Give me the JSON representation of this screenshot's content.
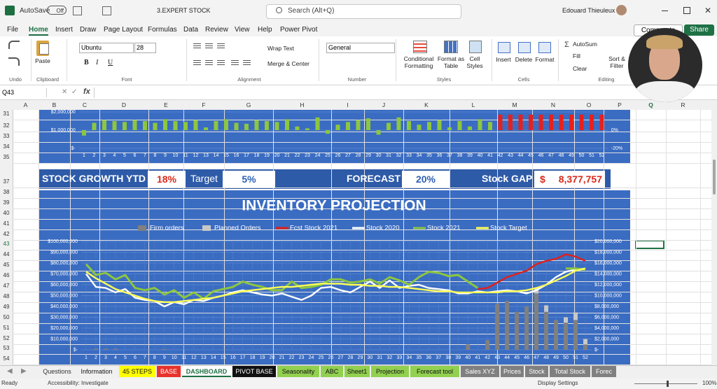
{
  "title_bar": {
    "autosave": "AutoSave",
    "toggle": "Off",
    "file_name": "3.EXPERT STOCK",
    "search": "Search (Alt+Q)",
    "user": "Edouard Thieuleux"
  },
  "menu_tabs": [
    "File",
    "Home",
    "Insert",
    "Draw",
    "Page Layout",
    "Formulas",
    "Data",
    "Review",
    "View",
    "Help",
    "Power Pivot"
  ],
  "comments": "Comments",
  "share": "Share",
  "ribbon": {
    "groups": [
      "Undo",
      "Clipboard",
      "Font",
      "Alignment",
      "Number",
      "Styles",
      "Cells",
      "Editing"
    ],
    "buttons": [
      "Paste",
      "Wrap Text",
      "Merge & Center",
      "Conditional Formatting",
      "Format as Table",
      "Cell Styles",
      "Insert",
      "Delete",
      "Format",
      "AutoSum",
      "Fill",
      "Clear",
      "Sort & Filter"
    ],
    "font_name": "Ubuntu",
    "font_size": "28",
    "number_format": "General",
    "font_styles": [
      "B",
      "I",
      "U"
    ]
  },
  "formula_bar": {
    "name_box": "Q43",
    "function": "fx"
  },
  "columns": [
    "A",
    "B",
    "C",
    "D",
    "E",
    "F",
    "G",
    "H",
    "I",
    "J",
    "K",
    "L",
    "M",
    "N",
    "O",
    "P",
    "Q",
    "R"
  ],
  "rows": [
    31,
    32,
    33,
    34,
    35,
    37,
    38,
    39,
    40,
    41,
    42,
    43,
    44,
    45,
    46,
    47,
    48,
    49,
    50,
    51,
    52,
    53,
    54
  ],
  "kpis": [
    {
      "label": "STOCK GROWTH YTD",
      "value": "18%"
    },
    {
      "label": "Target",
      "value": "5%"
    },
    {
      "label": "FORECAST",
      "value": "20%"
    },
    {
      "label": "Stock GAP",
      "currency": "$",
      "value": "8,377,757"
    }
  ],
  "sheet_tabs": [
    "Questions",
    "Information",
    "45 STEPS",
    "BASE",
    "DASHBOARD",
    "PIVOT BASE",
    "Seasonality",
    "ABC",
    "Sheet1",
    "Projection",
    "Forecast tool",
    "Sales XYZ",
    "Prices",
    "Stock",
    "Total Stock",
    "Forec"
  ],
  "status_bar": {
    "mode": "Ready",
    "accessibility": "Accessibility: Investigate",
    "display": "Display Settings",
    "zoom": "100%"
  },
  "chart_data": [
    {
      "type": "bar",
      "categories": [
        1,
        2,
        3,
        4,
        5,
        6,
        7,
        8,
        9,
        10,
        11,
        12,
        13,
        14,
        15,
        16,
        17,
        18,
        19,
        20,
        21,
        22,
        23,
        24,
        25,
        26,
        27,
        28,
        29,
        30,
        31,
        32,
        33,
        34,
        35,
        36,
        37,
        38,
        39,
        40,
        41,
        42,
        43,
        44,
        45,
        46,
        47,
        48,
        49,
        50,
        51,
        52
      ],
      "values": [
        -6,
        8,
        11,
        10,
        9,
        11,
        10,
        8,
        12,
        10,
        9,
        11,
        3,
        10,
        12,
        8,
        7,
        11,
        10,
        9,
        12,
        4,
        2,
        14,
        -4,
        6,
        9,
        11,
        13,
        -5,
        8,
        14,
        10,
        6,
        9,
        11,
        3,
        10,
        4,
        12,
        9,
        17,
        17,
        17,
        17,
        17,
        17,
        17,
        17,
        17,
        17,
        17
      ],
      "colors": [
        "#8dc63f",
        "#8dc63f",
        "#8dc63f",
        "#8dc63f",
        "#8dc63f",
        "#8dc63f",
        "#8dc63f",
        "#8dc63f",
        "#8dc63f",
        "#8dc63f",
        "#8dc63f",
        "#8dc63f",
        "#8dc63f",
        "#8dc63f",
        "#8dc63f",
        "#8dc63f",
        "#8dc63f",
        "#8dc63f",
        "#8dc63f",
        "#8dc63f",
        "#8dc63f",
        "#8dc63f",
        "#8dc63f",
        "#8dc63f",
        "#8dc63f",
        "#8dc63f",
        "#8dc63f",
        "#8dc63f",
        "#8dc63f",
        "#8dc63f",
        "#8dc63f",
        "#8dc63f",
        "#8dc63f",
        "#8dc63f",
        "#8dc63f",
        "#8dc63f",
        "#8dc63f",
        "#8dc63f",
        "#8dc63f",
        "#8dc63f",
        "#8dc63f",
        "#e8201c",
        "#e8201c",
        "#e8201c",
        "#e8201c",
        "#e8201c",
        "#e8201c",
        "#e8201c",
        "#e8201c",
        "#e8201c",
        "#e8201c",
        "#e8201c"
      ],
      "axis": "y2",
      "ylim": [
        0,
        2000000
      ],
      "yticks": [
        {
          "value": 0,
          "label": "$-"
        },
        {
          "value": 1000000,
          "label": "$1,000,000"
        },
        {
          "value": 2000000,
          "label": "$2,000,000"
        }
      ],
      "y2lim": [
        -20,
        20
      ],
      "y2ticks": [
        {
          "value": -20,
          "label": "-20%"
        },
        {
          "value": 0,
          "label": "0%"
        }
      ],
      "grid": true
    },
    {
      "type": "combo",
      "title": "INVENTORY PROJECTION",
      "categories": [
        1,
        2,
        3,
        4,
        5,
        6,
        7,
        8,
        9,
        10,
        11,
        12,
        13,
        14,
        15,
        16,
        17,
        18,
        19,
        20,
        21,
        22,
        23,
        24,
        25,
        26,
        27,
        28,
        29,
        30,
        31,
        32,
        33,
        34,
        35,
        36,
        37,
        38,
        39,
        40,
        41,
        42,
        43,
        44,
        45,
        46,
        47,
        48,
        49,
        50,
        51,
        52
      ],
      "series": [
        {
          "name": "Firm orders",
          "type": "bar",
          "axis": "y2",
          "color": "#808080",
          "values": [
            0,
            200000,
            200000,
            200000,
            0,
            0,
            0,
            0,
            150000,
            0,
            0,
            0,
            0,
            0,
            0,
            0,
            0,
            0,
            0,
            0,
            0,
            0,
            0,
            0,
            0,
            0,
            0,
            0,
            0,
            0,
            0,
            0,
            0,
            0,
            0,
            0,
            0,
            0,
            0,
            1000000,
            0,
            1800000,
            8500000,
            9000000,
            7000000,
            8000000,
            10400000,
            7000000,
            5500000,
            5000000,
            5500000,
            1000000
          ]
        },
        {
          "name": "Planned Orders",
          "type": "bar",
          "axis": "y2",
          "color": "#c8c8c8",
          "values": [
            0,
            0,
            0,
            0,
            0,
            0,
            0,
            0,
            0,
            0,
            0,
            0,
            0,
            0,
            0,
            0,
            0,
            0,
            0,
            0,
            0,
            0,
            0,
            0,
            0,
            0,
            0,
            0,
            0,
            0,
            0,
            0,
            0,
            0,
            0,
            0,
            0,
            0,
            0,
            0,
            0,
            0,
            0,
            0,
            0,
            0,
            1000000,
            1200000,
            0,
            1000000,
            1400000,
            1000000
          ]
        },
        {
          "name": "Fcst Stock 2021",
          "type": "line",
          "color": "#e0201c",
          "values": [
            null,
            null,
            null,
            null,
            null,
            null,
            null,
            null,
            null,
            null,
            null,
            null,
            null,
            null,
            null,
            null,
            null,
            null,
            null,
            null,
            null,
            null,
            null,
            null,
            null,
            null,
            null,
            null,
            null,
            null,
            null,
            null,
            null,
            null,
            null,
            null,
            null,
            null,
            null,
            null,
            56000000,
            57000000,
            62000000,
            67000000,
            70000000,
            73000000,
            79000000,
            82000000,
            84000000,
            88000000,
            86000000,
            82000000
          ]
        },
        {
          "name": "Stock 2020",
          "type": "line",
          "color": "#ffffff",
          "values": [
            70000000,
            58000000,
            57000000,
            53000000,
            56000000,
            48000000,
            46000000,
            45000000,
            40000000,
            44000000,
            42000000,
            46000000,
            45000000,
            48000000,
            50000000,
            53000000,
            55000000,
            53000000,
            51000000,
            50000000,
            52000000,
            49000000,
            46000000,
            50000000,
            57000000,
            58000000,
            55000000,
            53000000,
            58000000,
            63000000,
            57000000,
            64000000,
            57000000,
            59000000,
            60000000,
            57000000,
            56000000,
            55000000,
            52000000,
            52000000,
            54000000,
            53000000,
            54000000,
            55000000,
            54000000,
            52000000,
            55000000,
            60000000,
            67000000,
            72000000,
            74000000,
            75000000
          ]
        },
        {
          "name": "Stock 2021",
          "type": "line",
          "color": "#8dc63f",
          "values": [
            79000000,
            69000000,
            71000000,
            65000000,
            69000000,
            57000000,
            55000000,
            57000000,
            51000000,
            55000000,
            48000000,
            53000000,
            47000000,
            54000000,
            56000000,
            58000000,
            63000000,
            60000000,
            58000000,
            55000000,
            55000000,
            63000000,
            57000000,
            58000000,
            60000000,
            65000000,
            65000000,
            62000000,
            63000000,
            65000000,
            61000000,
            67000000,
            64000000,
            60000000,
            67000000,
            72000000,
            71000000,
            68000000,
            69000000,
            63000000,
            57000000,
            null,
            null,
            null,
            null,
            null,
            null,
            null,
            null,
            75000000,
            75000000,
            74000000
          ]
        },
        {
          "name": "Stock Target",
          "type": "line",
          "color": "#ffff55",
          "values": [
            72000000,
            66000000,
            61000000,
            56000000,
            53000000,
            50000000,
            47000000,
            45000000,
            44000000,
            44000000,
            45000000,
            46000000,
            47000000,
            48000000,
            50000000,
            52000000,
            54000000,
            55000000,
            56000000,
            57000000,
            58000000,
            58000000,
            59000000,
            60000000,
            61000000,
            61000000,
            61000000,
            60000000,
            60000000,
            59000000,
            59000000,
            58000000,
            58000000,
            57000000,
            56000000,
            55000000,
            54000000,
            54000000,
            53000000,
            53000000,
            53000000,
            53000000,
            53000000,
            54000000,
            54000000,
            55000000,
            57000000,
            60000000,
            64000000,
            68000000,
            73000000,
            75000000
          ]
        }
      ],
      "ylim": [
        0,
        100000000
      ],
      "yticks": [
        {
          "value": 0,
          "label": "$-"
        },
        {
          "value": 10000000,
          "label": "$10,000,000"
        },
        {
          "value": 20000000,
          "label": "$20,000,000"
        },
        {
          "value": 30000000,
          "label": "$30,000,000"
        },
        {
          "value": 40000000,
          "label": "$40,000,000"
        },
        {
          "value": 50000000,
          "label": "$50,000,000"
        },
        {
          "value": 60000000,
          "label": "$60,000,000"
        },
        {
          "value": 70000000,
          "label": "$70,000,000"
        },
        {
          "value": 80000000,
          "label": "$80,000,000"
        },
        {
          "value": 90000000,
          "label": "$90,000,000"
        },
        {
          "value": 100000000,
          "label": "$100,000,000"
        }
      ],
      "y2lim": [
        0,
        20000000
      ],
      "y2ticks": [
        {
          "value": 0,
          "label": "$-"
        },
        {
          "value": 2000000,
          "label": "$2,000,000"
        },
        {
          "value": 4000000,
          "label": "$4,000,000"
        },
        {
          "value": 6000000,
          "label": "$6,000,000"
        },
        {
          "value": 8000000,
          "label": "$8,000,000"
        },
        {
          "value": 10000000,
          "label": "$10,000,000"
        },
        {
          "value": 12000000,
          "label": "$12,000,000"
        },
        {
          "value": 14000000,
          "label": "$14,000,000"
        },
        {
          "value": 16000000,
          "label": "$16,000,000"
        },
        {
          "value": 18000000,
          "label": "$18,000,000"
        },
        {
          "value": 20000000,
          "label": "$20,000,000"
        }
      ],
      "grid": true,
      "legend": "top"
    }
  ]
}
